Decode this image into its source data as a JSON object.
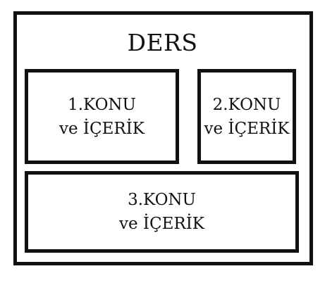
{
  "diagram": {
    "title": "DERS",
    "boxes": [
      {
        "line1": "1.KONU",
        "line2": "ve İÇERİK"
      },
      {
        "line1": "2.KONU",
        "line2": "ve İÇERİK"
      },
      {
        "line1": "3.KONU",
        "line2": "ve İÇERİK"
      }
    ],
    "colors": {
      "border": "#111111",
      "background": "#ffffff",
      "text": "#111111"
    }
  }
}
